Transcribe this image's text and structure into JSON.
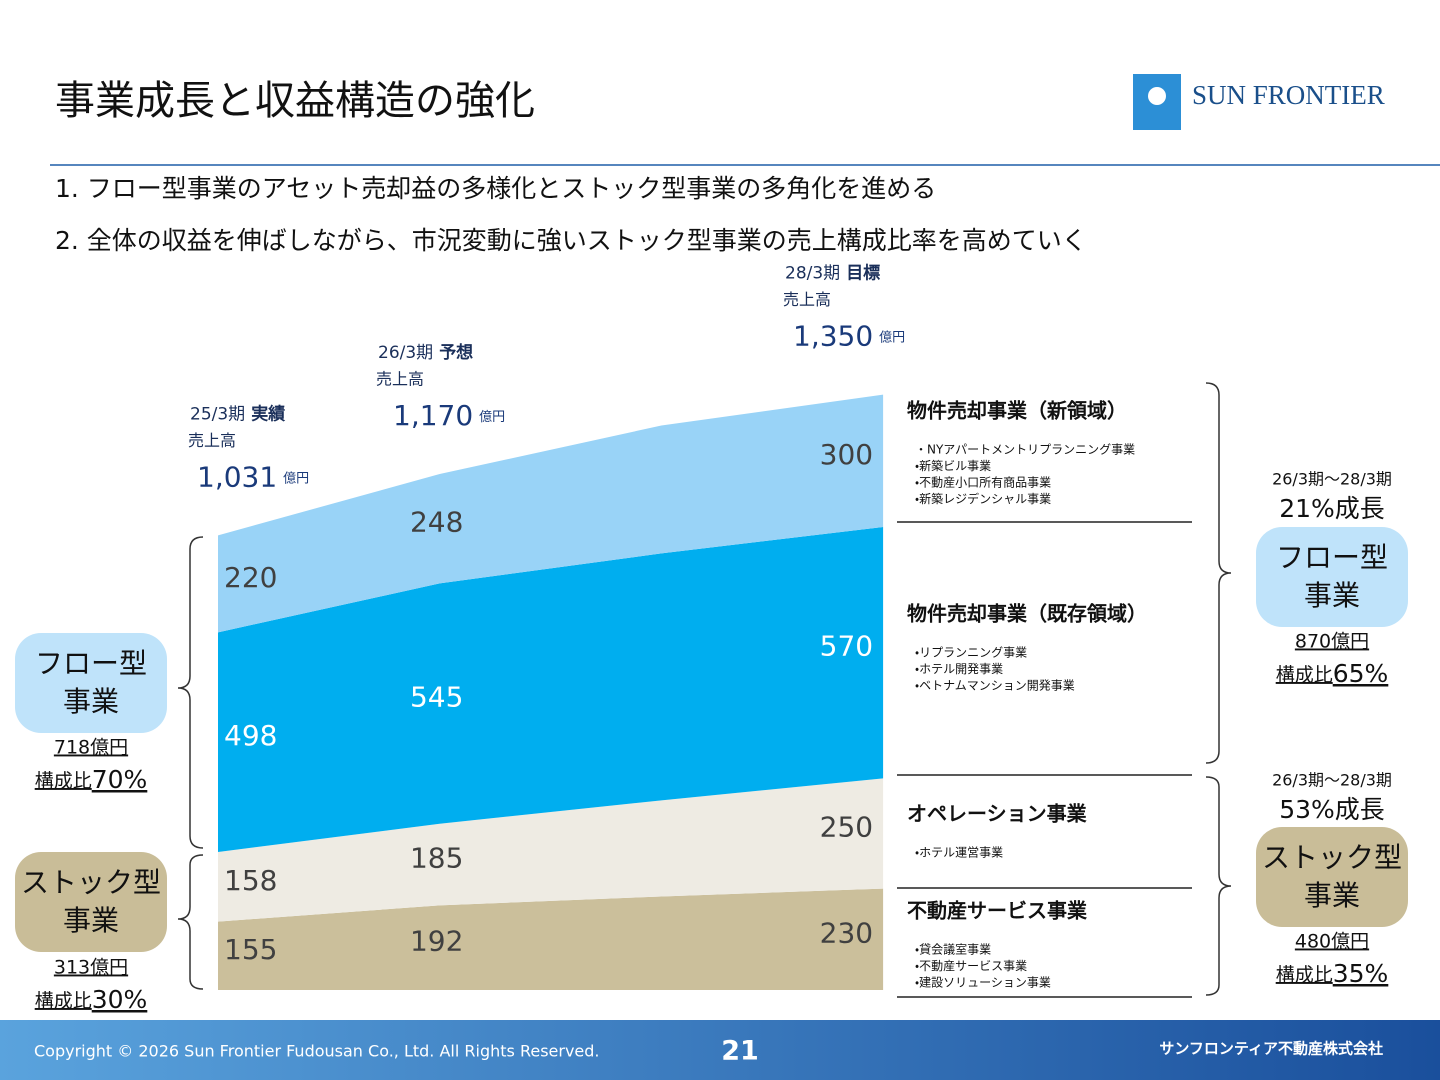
{
  "header": {
    "title": "事業成長と収益構造の強化",
    "logo_text": "SUN FRONTIER",
    "points": [
      "1. フロー型事業のアセット売却益の多様化とストック型事業の多角化を進める",
      "2. 全体の収益を伸ばしながら、市況変動に強いストック型事業の売上構成比率を高めていく"
    ]
  },
  "chart_data": {
    "type": "area",
    "stacked": true,
    "categories": [
      "25/3期",
      "26/3期",
      null,
      "28/3期"
    ],
    "statuses": [
      "実績",
      "予想",
      null,
      "目標"
    ],
    "sales_label": "売上高",
    "unit": "億円",
    "totals": {
      "values": [
        1031,
        1170,
        null,
        1350
      ],
      "value_labels": [
        "1,031",
        "1,170",
        null,
        "1,350"
      ]
    },
    "series": [
      {
        "name": "不動産サービス事業",
        "color": "#cbbf9b",
        "values": [
          155,
          192,
          212,
          230
        ],
        "items": [
          "・貸会議室事業",
          "・不動産サービス事業",
          "・建設ソリューション事業"
        ]
      },
      {
        "name": "オペレーション事業",
        "color": "#eeebe3",
        "values": [
          158,
          185,
          218,
          250
        ],
        "items": [
          "・ホテル運営事業"
        ]
      },
      {
        "name": "物件売却事業（既存領域）",
        "color": "#00aeef",
        "values": [
          498,
          545,
          560,
          570
        ],
        "items": [
          "・リプランニング事業",
          "・ホテル開発事業",
          "・ベトナムマンション開発事業"
        ]
      },
      {
        "name": "物件売却事業（新領域）",
        "color": "#99d3f7",
        "values": [
          220,
          248,
          290,
          300
        ],
        "items": [
          "・NYアパートメントリプランニング事業",
          "・新築ビル事業",
          "・不動産小口所有商品事業",
          "・新築レジデンシャル事業"
        ]
      }
    ]
  },
  "groups": {
    "left": [
      {
        "name_lines": [
          "フロー型",
          "事業"
        ],
        "amount": "718億円",
        "share_label": "構成比",
        "share": "70%"
      },
      {
        "name_lines": [
          "ストック型",
          "事業"
        ],
        "amount": "313億円",
        "share_label": "構成比",
        "share": "30%"
      }
    ],
    "right": [
      {
        "period": "26/3期～28/3期",
        "growth": "21%成長",
        "name_lines": [
          "フロー型",
          "事業"
        ],
        "amount": "870億円",
        "share_label": "構成比",
        "share": "65%"
      },
      {
        "period": "26/3期～28/3期",
        "growth": "53%成長",
        "name_lines": [
          "ストック型",
          "事業"
        ],
        "amount": "480億円",
        "share_label": "構成比",
        "share": "35%"
      }
    ]
  },
  "footer": {
    "copyright": "Copyright © 2026 Sun Frontier Fudousan Co., Ltd. All Rights Reserved.",
    "page": "21",
    "company": "サンフロンティア不動産株式会社"
  }
}
